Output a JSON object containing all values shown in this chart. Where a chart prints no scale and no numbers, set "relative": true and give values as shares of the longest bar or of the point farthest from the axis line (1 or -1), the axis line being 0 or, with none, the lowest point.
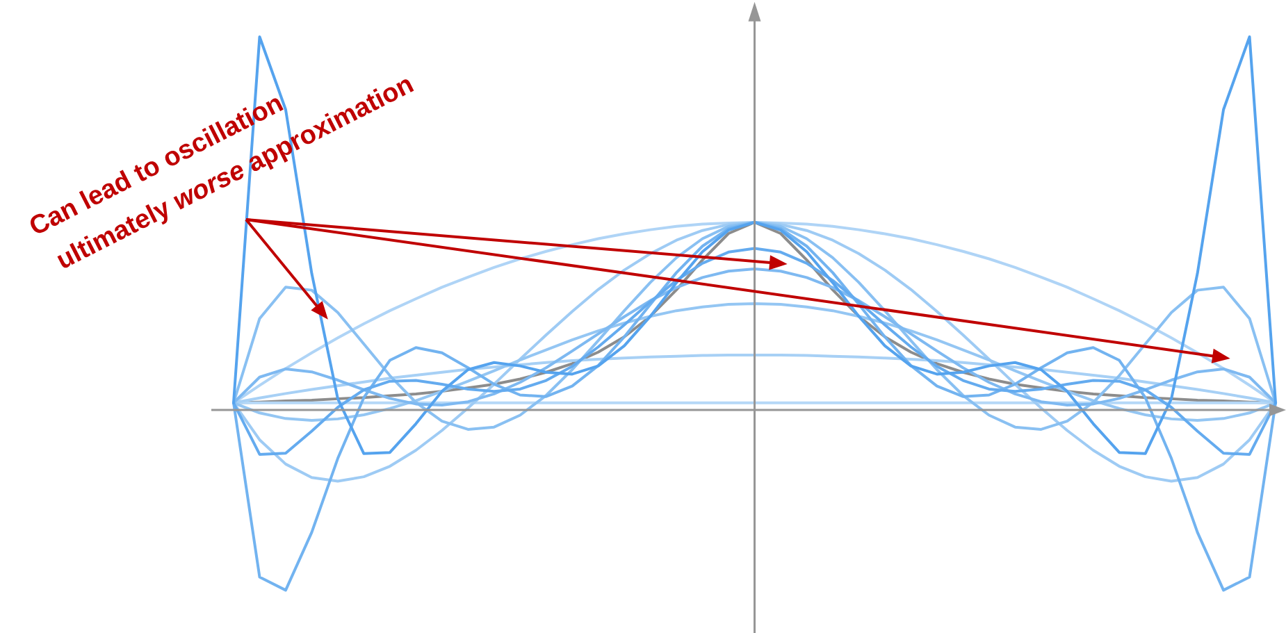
{
  "chart_data": {
    "type": "line",
    "relative": true,
    "marker": "none",
    "categories": [
      null,
      null,
      null,
      null,
      null,
      null,
      null,
      null,
      null,
      null,
      null,
      null,
      null,
      null,
      null,
      null,
      null,
      null,
      null,
      null,
      null,
      null,
      null,
      null,
      null,
      null,
      null,
      null,
      null,
      null,
      null,
      null,
      null,
      null,
      null,
      null,
      null,
      null,
      null,
      null,
      null
    ],
    "annotations": [
      "Can lead to oscillation",
      "ultimately *worse* approximation"
    ],
    "series": [
      {
        "color": "#8c8c8c",
        "values": [
          0.019,
          0.021,
          0.024,
          0.026,
          0.03,
          0.033,
          0.038,
          0.043,
          0.05,
          0.059,
          0.069,
          0.083,
          0.101,
          0.124,
          0.155,
          0.196,
          0.251,
          0.322,
          0.402,
          0.473,
          0.503,
          0.473,
          0.402,
          0.322,
          0.251,
          0.196,
          0.155,
          0.124,
          0.101,
          0.083,
          0.069,
          0.059,
          0.05,
          0.043,
          0.038,
          0.033,
          0.03,
          0.026,
          0.024,
          0.021,
          0.019
        ]
      },
      {
        "color": "#b5d8f7",
        "values": [
          0.019,
          0.019,
          0.019,
          0.019,
          0.019,
          0.019,
          0.019,
          0.019,
          0.019,
          0.019,
          0.019,
          0.019,
          0.019,
          0.019,
          0.019,
          0.019,
          0.019,
          0.019,
          0.019,
          0.019,
          0.019,
          0.019,
          0.019,
          0.019,
          0.019,
          0.019,
          0.019,
          0.019,
          0.019,
          0.019,
          0.019,
          0.019,
          0.019,
          0.019,
          0.019,
          0.019,
          0.019,
          0.019,
          0.019,
          0.019,
          0.019
        ]
      },
      {
        "color": "#afd4f6",
        "values": [
          0.019,
          0.066,
          0.111,
          0.153,
          0.193,
          0.231,
          0.266,
          0.298,
          0.329,
          0.356,
          0.382,
          0.405,
          0.425,
          0.443,
          0.459,
          0.472,
          0.483,
          0.492,
          0.498,
          0.501,
          0.503,
          0.501,
          0.498,
          0.492,
          0.483,
          0.472,
          0.459,
          0.443,
          0.425,
          0.405,
          0.382,
          0.356,
          0.329,
          0.298,
          0.266,
          0.231,
          0.193,
          0.153,
          0.111,
          0.066,
          0.019
        ]
      },
      {
        "color": "#a7d0f5",
        "values": [
          0.019,
          0.032,
          0.044,
          0.055,
          0.065,
          0.075,
          0.085,
          0.093,
          0.101,
          0.109,
          0.115,
          0.121,
          0.127,
          0.132,
          0.136,
          0.139,
          0.142,
          0.144,
          0.146,
          0.147,
          0.147,
          0.147,
          0.146,
          0.144,
          0.142,
          0.139,
          0.136,
          0.132,
          0.127,
          0.121,
          0.115,
          0.109,
          0.101,
          0.093,
          0.085,
          0.075,
          0.065,
          0.055,
          0.044,
          0.032,
          0.019
        ]
      },
      {
        "color": "#9ecbf4",
        "values": [
          0.019,
          -0.08,
          -0.145,
          -0.181,
          -0.191,
          -0.179,
          -0.151,
          -0.108,
          -0.055,
          0.005,
          0.069,
          0.136,
          0.201,
          0.264,
          0.323,
          0.375,
          0.419,
          0.455,
          0.481,
          0.497,
          0.503,
          0.497,
          0.481,
          0.455,
          0.419,
          0.375,
          0.323,
          0.264,
          0.201,
          0.136,
          0.069,
          0.005,
          -0.055,
          -0.108,
          -0.151,
          -0.179,
          -0.191,
          -0.181,
          -0.145,
          -0.08,
          0.019
        ]
      },
      {
        "color": "#94c6f3",
        "values": [
          0.019,
          -0.008,
          -0.023,
          -0.028,
          -0.024,
          -0.013,
          0.004,
          0.025,
          0.05,
          0.077,
          0.105,
          0.134,
          0.161,
          0.188,
          0.212,
          0.233,
          0.251,
          0.266,
          0.276,
          0.283,
          0.285,
          0.283,
          0.276,
          0.266,
          0.251,
          0.233,
          0.212,
          0.188,
          0.161,
          0.134,
          0.105,
          0.077,
          0.05,
          0.025,
          0.004,
          -0.013,
          -0.024,
          -0.028,
          -0.023,
          -0.008,
          0.019
        ]
      },
      {
        "color": "#89c0f2",
        "values": [
          0.019,
          0.245,
          0.329,
          0.321,
          0.261,
          0.177,
          0.092,
          0.02,
          -0.03,
          -0.052,
          -0.046,
          -0.014,
          0.039,
          0.108,
          0.186,
          0.266,
          0.342,
          0.408,
          0.459,
          0.492,
          0.503,
          0.492,
          0.459,
          0.408,
          0.342,
          0.266,
          0.186,
          0.108,
          0.039,
          -0.014,
          -0.046,
          -0.052,
          -0.03,
          0.02,
          0.092,
          0.177,
          0.261,
          0.321,
          0.329,
          0.245,
          0.019
        ]
      },
      {
        "color": "#7eb9f1",
        "values": [
          0.019,
          0.088,
          0.11,
          0.102,
          0.08,
          0.054,
          0.031,
          0.016,
          0.013,
          0.022,
          0.043,
          0.074,
          0.113,
          0.158,
          0.204,
          0.25,
          0.293,
          0.328,
          0.355,
          0.372,
          0.378,
          0.372,
          0.355,
          0.328,
          0.293,
          0.25,
          0.204,
          0.158,
          0.113,
          0.074,
          0.043,
          0.022,
          0.013,
          0.016,
          0.031,
          0.054,
          0.08,
          0.102,
          0.11,
          0.088,
          0.019
        ]
      },
      {
        "color": "#72b3f0",
        "values": [
          0.019,
          -0.448,
          -0.483,
          -0.328,
          -0.13,
          0.033,
          0.133,
          0.167,
          0.153,
          0.113,
          0.069,
          0.04,
          0.036,
          0.064,
          0.119,
          0.196,
          0.283,
          0.368,
          0.439,
          0.486,
          0.503,
          0.486,
          0.439,
          0.368,
          0.283,
          0.196,
          0.119,
          0.064,
          0.036,
          0.04,
          0.069,
          0.113,
          0.153,
          0.167,
          0.133,
          0.033,
          -0.13,
          -0.328,
          -0.483,
          -0.448,
          0.019
        ]
      },
      {
        "color": "#64abef",
        "values": [
          0.019,
          -0.119,
          -0.116,
          -0.057,
          0.007,
          0.054,
          0.077,
          0.079,
          0.069,
          0.056,
          0.05,
          0.056,
          0.079,
          0.117,
          0.169,
          0.228,
          0.29,
          0.347,
          0.393,
          0.423,
          0.433,
          0.423,
          0.393,
          0.347,
          0.29,
          0.228,
          0.169,
          0.117,
          0.079,
          0.056,
          0.05,
          0.056,
          0.069,
          0.079,
          0.077,
          0.054,
          0.007,
          -0.057,
          -0.116,
          -0.119,
          0.019
        ]
      },
      {
        "color": "#55a3ee",
        "values": [
          0.019,
          1,
          0.805,
          0.366,
          0.03,
          -0.117,
          -0.114,
          -0.037,
          0.05,
          0.108,
          0.127,
          0.118,
          0.101,
          0.096,
          0.118,
          0.172,
          0.251,
          0.341,
          0.424,
          0.482,
          0.503,
          0.482,
          0.424,
          0.341,
          0.251,
          0.172,
          0.118,
          0.096,
          0.101,
          0.118,
          0.127,
          0.108,
          0.05,
          -0.037,
          -0.114,
          -0.117,
          0.03,
          0.366,
          0.805,
          1,
          0.019
        ]
      }
    ]
  }
}
